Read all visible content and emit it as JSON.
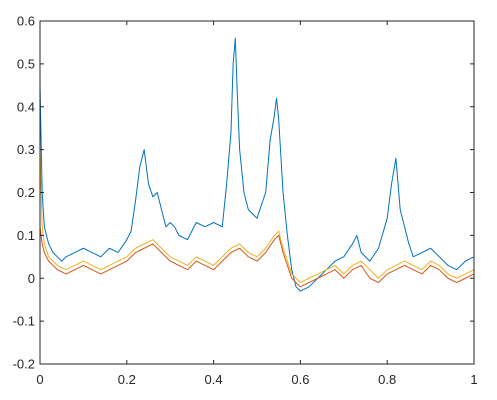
{
  "chart_data": {
    "type": "line",
    "title": "",
    "xlabel": "",
    "ylabel": "",
    "xlim": [
      0,
      1
    ],
    "ylim": [
      -0.2,
      0.6
    ],
    "grid": false,
    "legend": "none",
    "x_ticks": [
      0,
      0.2,
      0.4,
      0.6,
      0.8,
      1
    ],
    "x_tick_labels": [
      "0",
      "0.2",
      "0.4",
      "0.6",
      "0.8",
      "1"
    ],
    "y_ticks": [
      -0.2,
      -0.1,
      0,
      0.1,
      0.2,
      0.3,
      0.4,
      0.5,
      0.6
    ],
    "y_tick_labels": [
      "-0.2",
      "-0.1",
      "0",
      "0.1",
      "0.2",
      "0.3",
      "0.4",
      "0.5",
      "0.6"
    ],
    "series": [
      {
        "color": "#0072BD",
        "x": [
          0,
          0.005,
          0.01,
          0.02,
          0.03,
          0.04,
          0.05,
          0.06,
          0.08,
          0.1,
          0.12,
          0.14,
          0.16,
          0.18,
          0.2,
          0.21,
          0.22,
          0.23,
          0.24,
          0.25,
          0.26,
          0.27,
          0.28,
          0.29,
          0.3,
          0.31,
          0.32,
          0.34,
          0.36,
          0.38,
          0.4,
          0.42,
          0.43,
          0.44,
          0.445,
          0.45,
          0.455,
          0.46,
          0.47,
          0.48,
          0.5,
          0.52,
          0.53,
          0.54,
          0.545,
          0.55,
          0.56,
          0.57,
          0.58,
          0.59,
          0.6,
          0.62,
          0.64,
          0.66,
          0.68,
          0.7,
          0.72,
          0.73,
          0.74,
          0.76,
          0.78,
          0.8,
          0.81,
          0.82,
          0.83,
          0.84,
          0.85,
          0.86,
          0.88,
          0.9,
          0.92,
          0.94,
          0.96,
          0.98,
          1
        ],
        "y": [
          0.45,
          0.2,
          0.12,
          0.08,
          0.06,
          0.05,
          0.04,
          0.05,
          0.06,
          0.07,
          0.06,
          0.05,
          0.07,
          0.06,
          0.09,
          0.11,
          0.18,
          0.26,
          0.3,
          0.22,
          0.19,
          0.2,
          0.16,
          0.12,
          0.13,
          0.12,
          0.1,
          0.09,
          0.13,
          0.12,
          0.13,
          0.12,
          0.22,
          0.34,
          0.5,
          0.56,
          0.42,
          0.3,
          0.2,
          0.16,
          0.14,
          0.2,
          0.32,
          0.38,
          0.42,
          0.37,
          0.2,
          0.1,
          0.02,
          -0.02,
          -0.03,
          -0.02,
          0.0,
          0.02,
          0.04,
          0.05,
          0.08,
          0.1,
          0.06,
          0.04,
          0.07,
          0.14,
          0.22,
          0.28,
          0.16,
          0.12,
          0.08,
          0.05,
          0.06,
          0.07,
          0.05,
          0.03,
          0.02,
          0.04,
          0.05
        ]
      },
      {
        "color": "#D95319",
        "x": [
          0,
          0.005,
          0.01,
          0.02,
          0.04,
          0.06,
          0.08,
          0.1,
          0.12,
          0.14,
          0.16,
          0.18,
          0.2,
          0.22,
          0.24,
          0.26,
          0.28,
          0.3,
          0.32,
          0.34,
          0.36,
          0.38,
          0.4,
          0.42,
          0.44,
          0.46,
          0.48,
          0.5,
          0.52,
          0.54,
          0.55,
          0.56,
          0.58,
          0.6,
          0.62,
          0.64,
          0.66,
          0.68,
          0.7,
          0.72,
          0.74,
          0.76,
          0.78,
          0.8,
          0.82,
          0.84,
          0.86,
          0.88,
          0.9,
          0.92,
          0.94,
          0.96,
          0.98,
          1
        ],
        "y": [
          0.12,
          0.08,
          0.06,
          0.04,
          0.02,
          0.01,
          0.02,
          0.03,
          0.02,
          0.01,
          0.02,
          0.03,
          0.04,
          0.06,
          0.07,
          0.08,
          0.06,
          0.04,
          0.03,
          0.02,
          0.04,
          0.03,
          0.02,
          0.04,
          0.06,
          0.07,
          0.05,
          0.04,
          0.06,
          0.09,
          0.1,
          0.06,
          0.0,
          -0.02,
          -0.01,
          0.0,
          0.01,
          0.02,
          0.0,
          0.02,
          0.03,
          0.0,
          -0.01,
          0.01,
          0.02,
          0.03,
          0.02,
          0.01,
          0.03,
          0.02,
          0.0,
          -0.01,
          0.0,
          0.01
        ]
      },
      {
        "color": "#EDB120",
        "x": [
          0,
          0.005,
          0.01,
          0.02,
          0.04,
          0.06,
          0.08,
          0.1,
          0.12,
          0.14,
          0.16,
          0.18,
          0.2,
          0.22,
          0.24,
          0.26,
          0.28,
          0.3,
          0.32,
          0.34,
          0.36,
          0.38,
          0.4,
          0.42,
          0.44,
          0.46,
          0.48,
          0.5,
          0.52,
          0.54,
          0.55,
          0.56,
          0.58,
          0.6,
          0.62,
          0.64,
          0.66,
          0.68,
          0.7,
          0.72,
          0.74,
          0.76,
          0.78,
          0.8,
          0.82,
          0.84,
          0.86,
          0.88,
          0.9,
          0.92,
          0.94,
          0.96,
          0.98,
          1
        ],
        "y": [
          0.3,
          0.12,
          0.08,
          0.05,
          0.03,
          0.02,
          0.03,
          0.04,
          0.03,
          0.02,
          0.03,
          0.04,
          0.05,
          0.07,
          0.08,
          0.09,
          0.07,
          0.05,
          0.04,
          0.03,
          0.05,
          0.04,
          0.03,
          0.05,
          0.07,
          0.08,
          0.06,
          0.05,
          0.07,
          0.1,
          0.11,
          0.07,
          0.01,
          -0.01,
          0.0,
          0.01,
          0.02,
          0.03,
          0.01,
          0.03,
          0.04,
          0.02,
          0.0,
          0.02,
          0.03,
          0.04,
          0.03,
          0.02,
          0.04,
          0.03,
          0.01,
          0.0,
          0.01,
          0.02
        ]
      }
    ]
  }
}
